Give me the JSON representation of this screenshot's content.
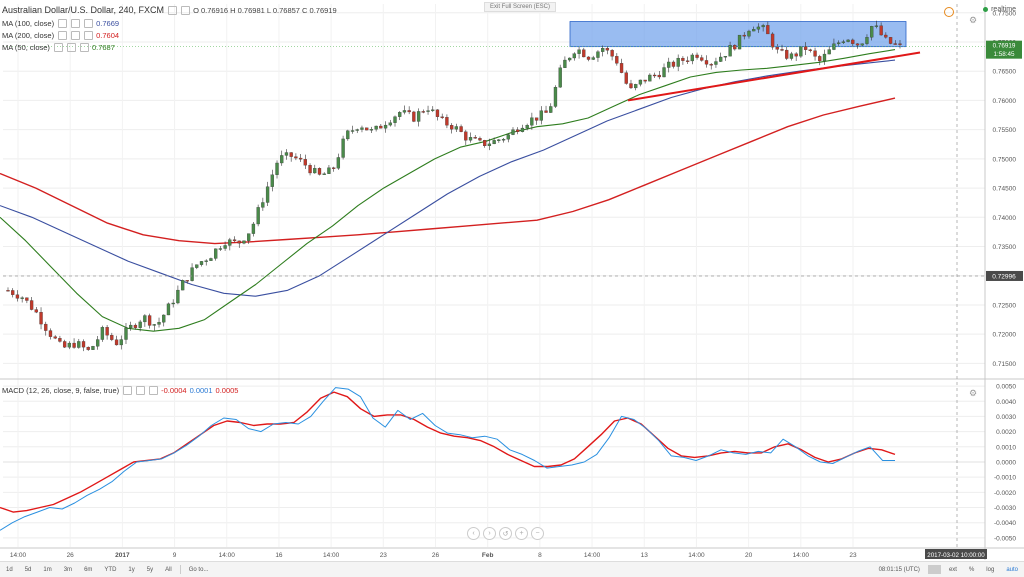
{
  "header": {
    "symbol_title": "Australian Dollar/U.S. Dollar, 240, FXCM",
    "ohlc": "O 0.76916 H 0.76981 L 0.76857 C 0.76919",
    "exit_fullscreen": "Exit Full Screen (ESC)",
    "realtime": "realtime"
  },
  "legends": [
    {
      "label": "MA (100, close)",
      "value": "0.7669",
      "color": "#3a4fa0"
    },
    {
      "label": "MA (200, close)",
      "value": "0.7604",
      "color": "#d32020"
    },
    {
      "label": "MA (50, close)",
      "value": "0.7687",
      "color": "#2e7d1e"
    }
  ],
  "macd_legend": {
    "label": "MACD (12, 26, close, 9, false, true)",
    "values": [
      {
        "text": "-0.0004",
        "color": "#d32020"
      },
      {
        "text": "0.0001",
        "color": "#2a7ad4"
      },
      {
        "text": "0.0005",
        "color": "#d32020"
      }
    ]
  },
  "chart_data": [
    {
      "type": "candlestick",
      "price_ticks": [
        "0.77500",
        "0.77000",
        "0.76500",
        "0.76000",
        "0.75500",
        "0.75000",
        "0.74500",
        "0.74000",
        "0.73500",
        "0.73000",
        "0.72500",
        "0.72000",
        "0.71500"
      ],
      "price_range": [
        0.7125,
        0.7765
      ],
      "last_price_label": "0.76919",
      "countdown_label": "1:58:45",
      "crosshair_price_label": "0.72996",
      "crosshair_price": 0.72996,
      "x_tick_labels": [
        "14:00",
        "26",
        "2017",
        "9",
        "14:00",
        "16",
        "14:00",
        "23",
        "26",
        "Feb",
        "8",
        "14:00",
        "13",
        "14:00",
        "20",
        "14:00",
        "23"
      ],
      "crosshair_time_label": "2017-03-02 10:00:00",
      "close_path": [
        0.7275,
        0.7265,
        0.724,
        0.7205,
        0.7175,
        0.7185,
        0.717,
        0.7205,
        0.7185,
        0.721,
        0.723,
        0.7215,
        0.725,
        0.729,
        0.732,
        0.7335,
        0.736,
        0.7355,
        0.738,
        0.744,
        0.75,
        0.7505,
        0.749,
        0.747,
        0.748,
        0.754,
        0.756,
        0.7545,
        0.7565,
        0.758,
        0.757,
        0.759,
        0.7565,
        0.7555,
        0.7535,
        0.7525,
        0.753,
        0.754,
        0.756,
        0.757,
        0.758,
        0.766,
        0.769,
        0.7675,
        0.769,
        0.767,
        0.7615,
        0.7635,
        0.7645,
        0.766,
        0.767,
        0.768,
        0.7665,
        0.768,
        0.77,
        0.773,
        0.772,
        0.768,
        0.7675,
        0.769,
        0.7665,
        0.769,
        0.771,
        0.7695,
        0.773,
        0.77,
        0.7692
      ],
      "ma_50": [
        0.74,
        0.736,
        0.7315,
        0.727,
        0.723,
        0.721,
        0.7205,
        0.721,
        0.7225,
        0.7255,
        0.7285,
        0.732,
        0.7355,
        0.7385,
        0.742,
        0.745,
        0.7475,
        0.75,
        0.752,
        0.753,
        0.7545,
        0.7555,
        0.756,
        0.757,
        0.759,
        0.761,
        0.7625,
        0.764,
        0.7648,
        0.7652,
        0.7655,
        0.766,
        0.7665,
        0.7672,
        0.768,
        0.7687
      ],
      "ma_100": [
        0.742,
        0.74,
        0.7375,
        0.735,
        0.7325,
        0.7305,
        0.7285,
        0.727,
        0.7265,
        0.7275,
        0.73,
        0.7335,
        0.737,
        0.7405,
        0.744,
        0.747,
        0.7495,
        0.7515,
        0.754,
        0.7565,
        0.7585,
        0.7605,
        0.762,
        0.7632,
        0.7642,
        0.765,
        0.7657,
        0.7663,
        0.7669
      ],
      "ma_200": [
        0.7475,
        0.745,
        0.742,
        0.739,
        0.737,
        0.736,
        0.7355,
        0.7358,
        0.7362,
        0.7366,
        0.737,
        0.7375,
        0.738,
        0.7385,
        0.739,
        0.7395,
        0.741,
        0.743,
        0.7455,
        0.748,
        0.7505,
        0.753,
        0.7555,
        0.7575,
        0.759,
        0.7604
      ],
      "trendline": [
        [
          0.76,
          0.7682
        ]
      ],
      "resistance_zone": [
        0.7692,
        0.7735
      ]
    },
    {
      "type": "line",
      "name": "MACD",
      "y_ticks": [
        "0.0050",
        "0.0040",
        "0.0030",
        "0.0020",
        "0.0010",
        "0.0000",
        "-0.0010",
        "-0.0020",
        "-0.0030",
        "-0.0040",
        "-0.0050"
      ],
      "y_range": [
        -0.0056,
        0.0054
      ],
      "macd": [
        -0.0045,
        -0.004,
        -0.0036,
        -0.0033,
        -0.003,
        -0.0031,
        -0.0027,
        -0.0022,
        -0.0018,
        -0.0013,
        -0.0006,
        0.0,
        0.0001,
        0.0002,
        0.0006,
        0.0011,
        0.0017,
        0.0024,
        0.0029,
        0.0028,
        0.0022,
        0.002,
        0.0025,
        0.0026,
        0.0025,
        0.003,
        0.004,
        0.0049,
        0.0048,
        0.0043,
        0.0029,
        0.0023,
        0.0034,
        0.0028,
        0.0032,
        0.0024,
        0.0019,
        0.0018,
        0.0016,
        0.0017,
        0.0015,
        0.0008,
        0.0005,
        0.0001,
        -0.0004,
        -0.0003,
        -0.0002,
        0.0,
        0.0005,
        0.0016,
        0.003,
        0.0028,
        0.0022,
        0.0014,
        0.0004,
        0.0003,
        0.0001,
        0.0004,
        0.0008,
        0.0006,
        0.0005,
        0.0007,
        0.0006,
        0.0015,
        0.001,
        0.0004,
        0.0,
        -0.0001,
        0.0003,
        0.0007,
        0.001,
        0.0001,
        0.0001
      ],
      "signal": [
        -0.003,
        -0.0033,
        -0.0032,
        -0.003,
        -0.0028,
        -0.0024,
        -0.002,
        -0.0015,
        -0.001,
        -0.0005,
        0.0,
        0.0001,
        0.0002,
        0.0006,
        0.0012,
        0.0018,
        0.0024,
        0.0027,
        0.0026,
        0.0024,
        0.0025,
        0.0025,
        0.0026,
        0.0033,
        0.0042,
        0.0046,
        0.0043,
        0.0035,
        0.003,
        0.0031,
        0.0031,
        0.0028,
        0.0023,
        0.0019,
        0.0017,
        0.0016,
        0.0014,
        0.001,
        0.0005,
        0.0001,
        -0.0003,
        -0.0003,
        -0.0002,
        0.0002,
        0.001,
        0.0018,
        0.0027,
        0.0029,
        0.0025,
        0.0017,
        0.0009,
        0.0004,
        0.0003,
        0.0004,
        0.0006,
        0.0007,
        0.0006,
        0.0006,
        0.001,
        0.0012,
        0.0008,
        0.0003,
        0.0,
        0.0002,
        0.0006,
        0.0009,
        0.0008,
        0.0005
      ]
    }
  ],
  "toolbar": {
    "timeframes": [
      "1d",
      "5d",
      "1m",
      "3m",
      "6m",
      "YTD",
      "1y",
      "5y",
      "All",
      "Go to..."
    ],
    "clock": "08:01:15 (UTC)",
    "ext": "ext",
    "percent": "%",
    "log": "log",
    "auto": "auto"
  }
}
